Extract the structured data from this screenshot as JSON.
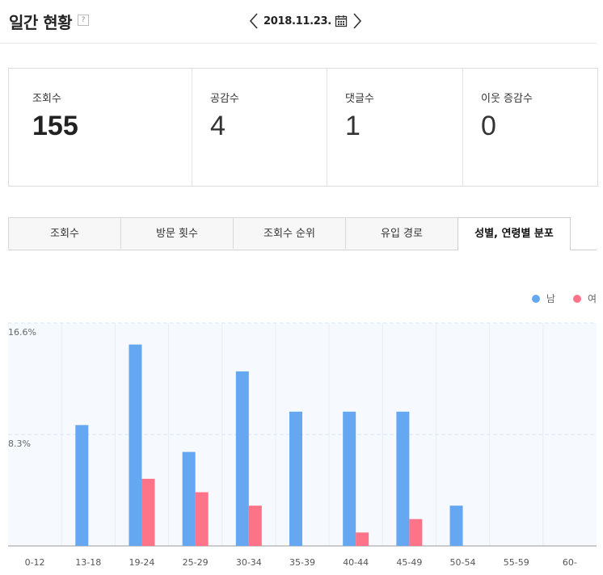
{
  "header": {
    "title": "일간 현황",
    "help": "?",
    "date": "2018.11.23."
  },
  "stats": [
    {
      "label": "조회수",
      "value": "155"
    },
    {
      "label": "공감수",
      "value": "4"
    },
    {
      "label": "댓글수",
      "value": "1"
    },
    {
      "label": "이웃 증감수",
      "value": "0"
    }
  ],
  "tabs": [
    {
      "label": "조회수"
    },
    {
      "label": "방문 횟수"
    },
    {
      "label": "조회수 순위"
    },
    {
      "label": "유입 경로"
    },
    {
      "label": "성별, 연령별 분포"
    }
  ],
  "colors": {
    "male": "#65a7f1",
    "female": "#fd7489"
  },
  "chart_data": {
    "type": "bar",
    "categories": [
      "0-12",
      "13-18",
      "19-24",
      "25-29",
      "30-34",
      "35-39",
      "40-44",
      "45-49",
      "50-54",
      "55-59",
      "60-"
    ],
    "series": [
      {
        "name": "남",
        "values": [
          0,
          9.0,
          15.0,
          7.0,
          13.0,
          10.0,
          10.0,
          10.0,
          3.0,
          0,
          0
        ]
      },
      {
        "name": "여",
        "values": [
          0,
          0,
          5.0,
          4.0,
          3.0,
          0,
          1.0,
          2.0,
          0,
          0,
          0
        ]
      }
    ],
    "y_ticks": [
      "8.3%",
      "16.6%"
    ],
    "ylim": [
      0,
      16.6
    ],
    "legend_position": "top-right"
  }
}
